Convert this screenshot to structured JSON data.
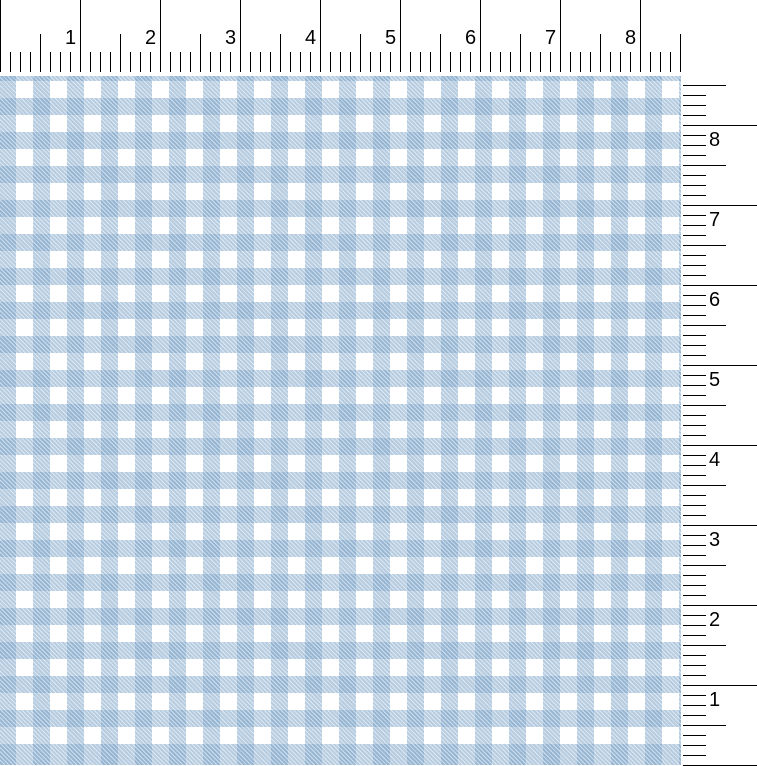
{
  "fabric": {
    "pattern": "gingham",
    "colors": {
      "dark": "#7ba3c8",
      "background": "#ffffff"
    }
  },
  "top_ruler": {
    "labels": [
      "1",
      "2",
      "3",
      "4",
      "5",
      "6",
      "7",
      "8"
    ]
  },
  "right_ruler": {
    "labels": [
      "1",
      "2",
      "3",
      "4",
      "5",
      "6",
      "7",
      "8"
    ]
  }
}
